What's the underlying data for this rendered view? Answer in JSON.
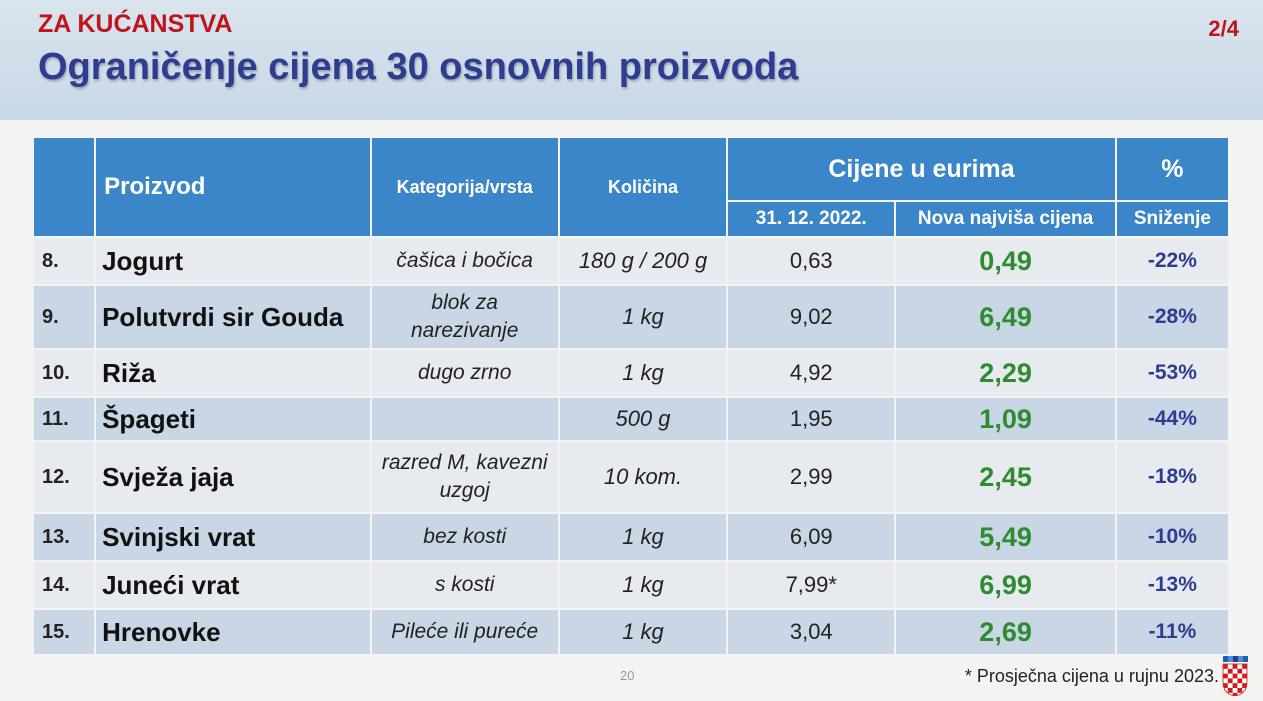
{
  "header": {
    "kicker": "ZA KUĆANSTVA",
    "title": "Ograničenje cijena 30 osnovnih proizvoda",
    "page_indicator": "2/4"
  },
  "table": {
    "headers": {
      "product": "Proizvod",
      "category": "Kategorija/vrsta",
      "quantity": "Količina",
      "prices_group": "Cijene u eurima",
      "old_price": "31. 12. 2022.",
      "new_price": "Nova najviša cijena",
      "percent_group": "%",
      "discount": "Sniženje"
    },
    "rows": [
      {
        "num": "8.",
        "product": "Jogurt",
        "category": "čašica i bočica",
        "quantity": "180 g / 200 g",
        "old": "0,63",
        "new": "0,49",
        "pct": "-22%"
      },
      {
        "num": "9.",
        "product": "Polutvrdi sir Gouda",
        "category": "blok za narezivanje",
        "quantity": "1 kg",
        "old": "9,02",
        "new": "6,49",
        "pct": "-28%"
      },
      {
        "num": "10.",
        "product": "Riža",
        "category": "dugo zrno",
        "quantity": "1 kg",
        "old": "4,92",
        "new": "2,29",
        "pct": "-53%"
      },
      {
        "num": "11.",
        "product": "Špageti",
        "category": "",
        "quantity": "500 g",
        "old": "1,95",
        "new": "1,09",
        "pct": "-44%"
      },
      {
        "num": "12.",
        "product": "Svježa jaja",
        "category": "razred M, kavezni uzgoj",
        "quantity": "10 kom.",
        "old": "2,99",
        "new": "2,45",
        "pct": "-18%"
      },
      {
        "num": "13.",
        "product": "Svinjski vrat",
        "category": "bez kosti",
        "quantity": "1 kg",
        "old": "6,09",
        "new": "5,49",
        "pct": "-10%"
      },
      {
        "num": "14.",
        "product": "Juneći vrat",
        "category": "s kosti",
        "quantity": "1 kg",
        "old": "7,99*",
        "new": "6,99",
        "pct": "-13%"
      },
      {
        "num": "15.",
        "product": "Hrenovke",
        "category": "Pileće ili pureće",
        "quantity": "1 kg",
        "old": "3,04",
        "new": "2,69",
        "pct": "-11%"
      }
    ]
  },
  "footer": {
    "slide_number": "20",
    "footnote": "* Prosječna cijena u rujnu 2023."
  },
  "colors": {
    "header_blue": "#3a86c8",
    "title_navy": "#2e3d8f",
    "accent_red": "#c0141c",
    "price_green": "#2e8b2e"
  },
  "icons": {
    "flag": "croatian-coat-of-arms-icon"
  }
}
